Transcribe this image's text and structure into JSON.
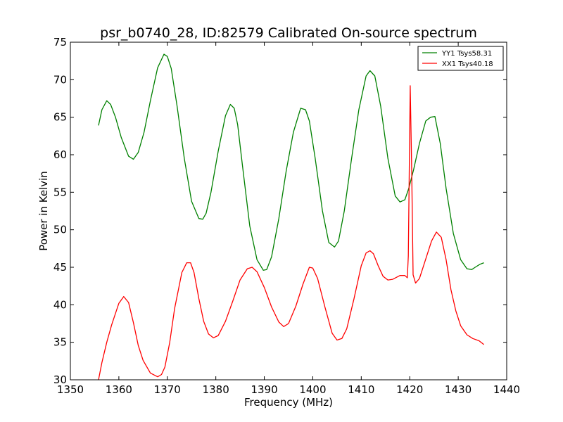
{
  "chart_data": {
    "type": "line",
    "title": "psr_b0740_28, ID:82579 Calibrated On-source spectrum",
    "xlabel": "Frequency (MHz)",
    "ylabel": "Power in Kelvin",
    "xlim": [
      1350,
      1440
    ],
    "ylim": [
      30,
      75
    ],
    "xticks": [
      1350,
      1360,
      1370,
      1380,
      1390,
      1400,
      1410,
      1420,
      1430,
      1440
    ],
    "yticks": [
      30,
      35,
      40,
      45,
      50,
      55,
      60,
      65,
      70,
      75
    ],
    "grid": false,
    "legend_position": "top-right",
    "series": [
      {
        "name": "YY1 Tsys58.31",
        "color": "#008000",
        "x": [
          1355.8,
          1356.5,
          1357.5,
          1358.3,
          1359.3,
          1360.5,
          1362.0,
          1363.0,
          1364.0,
          1365.2,
          1366.5,
          1368.0,
          1369.3,
          1370.0,
          1370.8,
          1372.0,
          1373.5,
          1375.0,
          1376.5,
          1377.3,
          1378.0,
          1379.0,
          1380.5,
          1382.0,
          1383.0,
          1383.8,
          1384.5,
          1385.5,
          1387.0,
          1388.5,
          1389.8,
          1390.5,
          1391.5,
          1393.0,
          1394.5,
          1396.0,
          1397.5,
          1398.5,
          1399.3,
          1400.5,
          1402.0,
          1403.3,
          1404.5,
          1405.3,
          1406.5,
          1408.0,
          1409.5,
          1411.0,
          1411.8,
          1412.8,
          1414.0,
          1415.5,
          1417.0,
          1418.0,
          1419.0,
          1419.8,
          1420.8,
          1422.0,
          1423.3,
          1424.3,
          1425.2,
          1426.3,
          1427.5,
          1429.0,
          1430.5,
          1431.8,
          1432.8,
          1433.5,
          1434.5,
          1435.3
        ],
        "values": [
          63.9,
          66.0,
          67.2,
          66.7,
          65.0,
          62.3,
          59.8,
          59.4,
          60.3,
          63.0,
          67.2,
          71.6,
          73.4,
          73.1,
          71.5,
          66.5,
          59.5,
          53.8,
          51.5,
          51.4,
          52.2,
          55.0,
          60.5,
          65.2,
          66.7,
          66.2,
          64.0,
          58.5,
          50.5,
          46.0,
          44.6,
          44.7,
          46.4,
          51.5,
          57.8,
          63.0,
          66.2,
          66.0,
          64.5,
          59.5,
          52.5,
          48.3,
          47.7,
          48.5,
          52.5,
          59.5,
          66.0,
          70.5,
          71.2,
          70.5,
          66.5,
          59.5,
          54.5,
          53.7,
          54.0,
          55.5,
          58.0,
          61.5,
          64.5,
          65.0,
          65.1,
          61.5,
          55.5,
          49.5,
          46.0,
          44.8,
          44.7,
          45.0,
          45.4,
          45.6
        ]
      },
      {
        "name": "XX1 Tsys40.18",
        "color": "#ff0000",
        "x": [
          1355.8,
          1356.5,
          1357.5,
          1358.5,
          1360.0,
          1361.0,
          1362.0,
          1363.0,
          1364.0,
          1365.0,
          1366.5,
          1368.0,
          1368.8,
          1369.5,
          1370.5,
          1371.5,
          1373.0,
          1374.0,
          1374.8,
          1375.5,
          1376.5,
          1377.5,
          1378.5,
          1379.5,
          1380.5,
          1382.0,
          1383.5,
          1385.0,
          1386.5,
          1387.5,
          1388.5,
          1390.0,
          1391.5,
          1393.0,
          1394.0,
          1395.0,
          1396.5,
          1398.0,
          1399.3,
          1400.0,
          1401.0,
          1402.5,
          1404.0,
          1405.0,
          1406.0,
          1407.0,
          1408.5,
          1410.0,
          1411.0,
          1411.8,
          1412.5,
          1413.5,
          1414.5,
          1415.5,
          1416.5,
          1418.0,
          1419.0,
          1419.5,
          1419.7,
          1420.1,
          1420.4,
          1420.7,
          1421.2,
          1422.0,
          1423.0,
          1424.5,
          1425.5,
          1426.5,
          1427.5,
          1428.5,
          1429.5,
          1430.5,
          1431.8,
          1433.0,
          1434.3,
          1435.3
        ],
        "values": [
          30.0,
          32.3,
          35.0,
          37.3,
          40.2,
          41.1,
          40.3,
          37.6,
          34.6,
          32.6,
          30.9,
          30.4,
          30.7,
          31.7,
          35.0,
          39.5,
          44.3,
          45.6,
          45.6,
          44.3,
          40.8,
          37.8,
          36.1,
          35.6,
          35.9,
          37.8,
          40.5,
          43.3,
          44.8,
          45.0,
          44.4,
          42.3,
          39.7,
          37.7,
          37.1,
          37.5,
          39.8,
          42.8,
          45.0,
          44.9,
          43.5,
          39.7,
          36.2,
          35.3,
          35.5,
          36.8,
          40.8,
          45.2,
          46.9,
          47.2,
          46.8,
          45.2,
          43.8,
          43.3,
          43.4,
          43.9,
          43.9,
          43.6,
          46.5,
          69.2,
          58.0,
          44.0,
          42.9,
          43.5,
          45.5,
          48.5,
          49.7,
          49.0,
          46.0,
          42.0,
          39.2,
          37.2,
          36.0,
          35.5,
          35.2,
          34.7
        ]
      }
    ]
  }
}
